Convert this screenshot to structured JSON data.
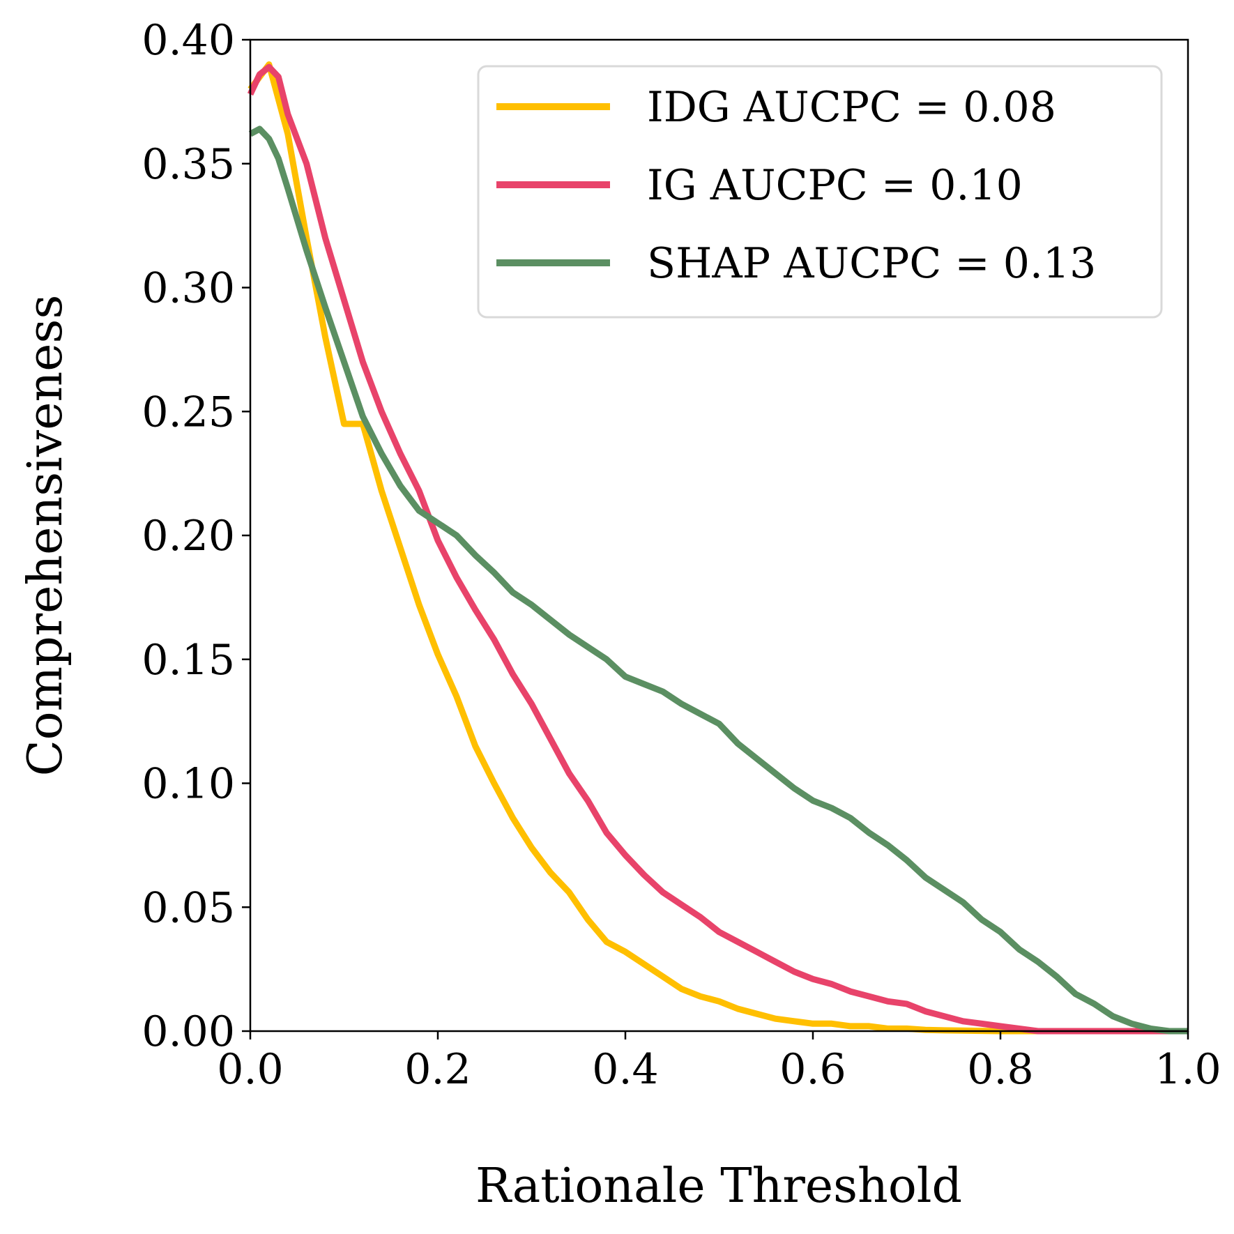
{
  "chart_data": {
    "type": "line",
    "title": "",
    "xlabel": "Rationale Threshold",
    "ylabel": "Comprehensiveness",
    "xlim": [
      0.0,
      1.0
    ],
    "ylim": [
      0.0,
      0.4
    ],
    "x_ticks": [
      "0.0",
      "0.2",
      "0.4",
      "0.6",
      "0.8",
      "1.0"
    ],
    "y_ticks": [
      "0.00",
      "0.05",
      "0.10",
      "0.15",
      "0.20",
      "0.25",
      "0.30",
      "0.35",
      "0.40"
    ],
    "grid": false,
    "legend_position": "top-right",
    "series": [
      {
        "name": "IDG AUCPC = 0.08",
        "color": "#FFBF00",
        "x": [
          0.0,
          0.02,
          0.04,
          0.06,
          0.08,
          0.1,
          0.12,
          0.14,
          0.16,
          0.18,
          0.2,
          0.22,
          0.24,
          0.26,
          0.28,
          0.3,
          0.32,
          0.34,
          0.36,
          0.38,
          0.4,
          0.42,
          0.44,
          0.46,
          0.48,
          0.5,
          0.52,
          0.54,
          0.56,
          0.58,
          0.6,
          0.62,
          0.64,
          0.66,
          0.68,
          0.7,
          0.72,
          0.74,
          0.76,
          0.78,
          0.8,
          0.85,
          0.9,
          0.95,
          1.0
        ],
        "y": [
          0.38,
          0.39,
          0.362,
          0.32,
          0.28,
          0.245,
          0.245,
          0.218,
          0.195,
          0.172,
          0.152,
          0.135,
          0.115,
          0.1,
          0.086,
          0.074,
          0.064,
          0.056,
          0.045,
          0.036,
          0.032,
          0.027,
          0.022,
          0.017,
          0.014,
          0.012,
          0.009,
          0.007,
          0.005,
          0.004,
          0.003,
          0.003,
          0.002,
          0.002,
          0.001,
          0.001,
          0.0005,
          0.0003,
          0.0002,
          0.0001,
          0.0,
          0.0,
          0.0,
          0.0,
          0.0
        ]
      },
      {
        "name": "IG AUCPC = 0.10",
        "color": "#E8436A",
        "x": [
          0.0,
          0.01,
          0.02,
          0.03,
          0.04,
          0.06,
          0.08,
          0.1,
          0.12,
          0.14,
          0.16,
          0.18,
          0.2,
          0.22,
          0.24,
          0.26,
          0.28,
          0.3,
          0.32,
          0.34,
          0.36,
          0.38,
          0.4,
          0.42,
          0.44,
          0.46,
          0.48,
          0.5,
          0.52,
          0.54,
          0.56,
          0.58,
          0.6,
          0.62,
          0.64,
          0.66,
          0.68,
          0.7,
          0.72,
          0.74,
          0.76,
          0.78,
          0.8,
          0.82,
          0.84,
          0.9,
          0.95,
          1.0
        ],
        "y": [
          0.378,
          0.386,
          0.389,
          0.385,
          0.37,
          0.35,
          0.32,
          0.295,
          0.27,
          0.25,
          0.233,
          0.218,
          0.198,
          0.183,
          0.17,
          0.158,
          0.144,
          0.132,
          0.118,
          0.104,
          0.093,
          0.08,
          0.071,
          0.063,
          0.056,
          0.051,
          0.046,
          0.04,
          0.036,
          0.032,
          0.028,
          0.024,
          0.021,
          0.019,
          0.016,
          0.014,
          0.012,
          0.011,
          0.008,
          0.006,
          0.004,
          0.003,
          0.002,
          0.001,
          0.0,
          0.0,
          0.0,
          0.0
        ]
      },
      {
        "name": "SHAP AUCPC = 0.13",
        "color": "#5B8F62",
        "x": [
          0.0,
          0.01,
          0.02,
          0.03,
          0.04,
          0.06,
          0.08,
          0.1,
          0.12,
          0.14,
          0.16,
          0.18,
          0.2,
          0.22,
          0.24,
          0.26,
          0.28,
          0.3,
          0.32,
          0.34,
          0.36,
          0.38,
          0.4,
          0.42,
          0.44,
          0.46,
          0.48,
          0.5,
          0.52,
          0.54,
          0.56,
          0.58,
          0.6,
          0.62,
          0.64,
          0.66,
          0.68,
          0.7,
          0.72,
          0.74,
          0.76,
          0.78,
          0.8,
          0.82,
          0.84,
          0.86,
          0.88,
          0.9,
          0.92,
          0.94,
          0.96,
          0.98,
          1.0
        ],
        "y": [
          0.362,
          0.364,
          0.36,
          0.352,
          0.34,
          0.315,
          0.292,
          0.27,
          0.248,
          0.233,
          0.22,
          0.21,
          0.205,
          0.2,
          0.192,
          0.185,
          0.177,
          0.172,
          0.166,
          0.16,
          0.155,
          0.15,
          0.143,
          0.14,
          0.137,
          0.132,
          0.128,
          0.124,
          0.116,
          0.11,
          0.104,
          0.098,
          0.093,
          0.09,
          0.086,
          0.08,
          0.075,
          0.069,
          0.062,
          0.057,
          0.052,
          0.045,
          0.04,
          0.033,
          0.028,
          0.022,
          0.015,
          0.011,
          0.006,
          0.003,
          0.001,
          0.0,
          0.0
        ]
      }
    ]
  }
}
